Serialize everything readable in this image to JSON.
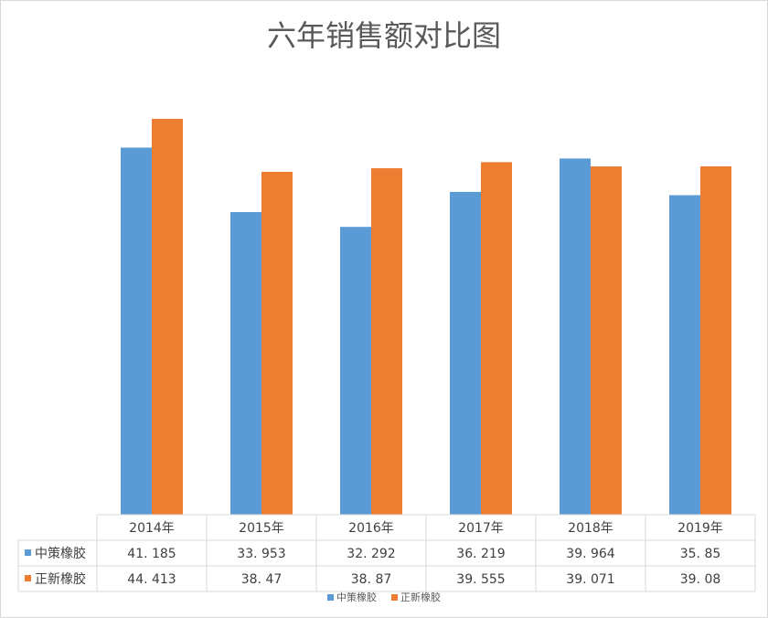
{
  "chart_data": {
    "type": "bar",
    "title": "六年销售额对比图",
    "categories": [
      "2014年",
      "2015年",
      "2016年",
      "2017年",
      "2018年",
      "2019年"
    ],
    "series": [
      {
        "name": "中策橡胶",
        "color": "#5b9bd5",
        "values": [
          41.185,
          33.953,
          32.292,
          36.219,
          39.964,
          35.85
        ],
        "labels": [
          "41. 185",
          "33. 953",
          "32. 292",
          "36. 219",
          "39. 964",
          "35. 85"
        ]
      },
      {
        "name": "正新橡胶",
        "color": "#ed7d31",
        "values": [
          44.413,
          38.47,
          38.87,
          39.555,
          39.071,
          39.08
        ],
        "labels": [
          "44. 413",
          "38. 47",
          "38. 87",
          "39. 555",
          "39. 071",
          "39. 08"
        ]
      }
    ],
    "ylim": [
      0,
      45
    ],
    "data_table": true,
    "legend_position": "bottom",
    "grid": false
  }
}
